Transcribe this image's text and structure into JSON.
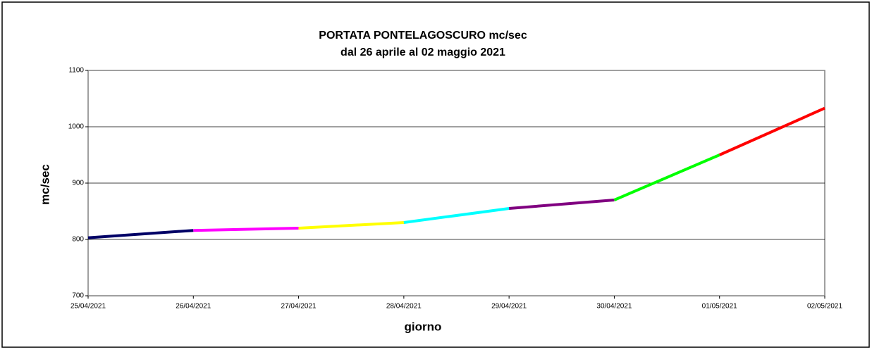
{
  "chart_data": {
    "type": "line",
    "title": [
      "PORTATA PONTELAGOSCURO mc/sec",
      "dal 26 aprile al 02 maggio 2021"
    ],
    "x_label": "giorno",
    "y_label": "mc/sec",
    "x": [
      "25/04/2021",
      "26/04/2021",
      "27/04/2021",
      "28/04/2021",
      "29/04/2021",
      "30/04/2021",
      "01/05/2021",
      "02/05/2021"
    ],
    "values": [
      803,
      816,
      820,
      830,
      855,
      870,
      950,
      1033
    ],
    "segment_colors": [
      "#000066",
      "#ff00ff",
      "#ffff00",
      "#00ffff",
      "#800080",
      "#00ff00",
      "#ff0000"
    ],
    "ylim": [
      700,
      1100
    ],
    "yticks": [
      700,
      800,
      900,
      1000,
      1100
    ],
    "grid": true
  }
}
